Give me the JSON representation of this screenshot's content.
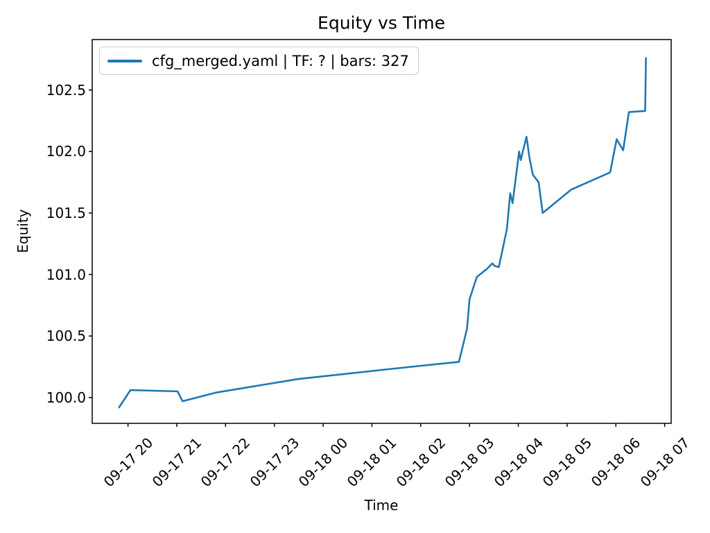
{
  "title": "Equity vs Time",
  "chart_data": {
    "type": "line",
    "title": "Equity vs Time",
    "xlabel": "Time",
    "ylabel": "Equity",
    "grid": false,
    "legend_position": "upper left",
    "background": "#ffffff",
    "spine_color": "#000000",
    "x_tick_labels": [
      "09-17 20",
      "09-17 21",
      "09-17 22",
      "09-17 23",
      "09-18 00",
      "09-18 01",
      "09-18 02",
      "09-18 03",
      "09-18 04",
      "09-18 05",
      "09-18 06",
      "09-18 07"
    ],
    "y_tick_values": [
      100.0,
      100.5,
      101.0,
      101.5,
      102.0,
      102.5
    ],
    "xlim": [
      "09-17 19:16",
      "09-18 07:08"
    ],
    "ylim": [
      99.79,
      102.91
    ],
    "series": [
      {
        "name": "cfg_merged.yaml | TF: ? | bars: 327",
        "color": "#1f77b4",
        "points": [
          [
            "09-17 19:49",
            99.92
          ],
          [
            "09-17 20:03",
            100.06
          ],
          [
            "09-17 21:01",
            100.05
          ],
          [
            "09-17 21:07",
            99.97
          ],
          [
            "09-17 21:48",
            100.04
          ],
          [
            "09-17 23:29",
            100.15
          ],
          [
            "09-18 01:20",
            100.23
          ],
          [
            "09-18 02:47",
            100.29
          ],
          [
            "09-18 02:57",
            100.56
          ],
          [
            "09-18 03:00",
            100.8
          ],
          [
            "09-18 03:09",
            100.98
          ],
          [
            "09-18 03:22",
            101.05
          ],
          [
            "09-18 03:28",
            101.09
          ],
          [
            "09-18 03:31",
            101.07
          ],
          [
            "09-18 03:36",
            101.06
          ],
          [
            "09-18 03:46",
            101.37
          ],
          [
            "09-18 03:50",
            101.66
          ],
          [
            "09-18 03:53",
            101.58
          ],
          [
            "09-18 04:01",
            102.0
          ],
          [
            "09-18 04:03",
            101.93
          ],
          [
            "09-18 04:10",
            102.12
          ],
          [
            "09-18 04:14",
            101.94
          ],
          [
            "09-18 04:18",
            101.81
          ],
          [
            "09-18 04:25",
            101.75
          ],
          [
            "09-18 04:30",
            101.5
          ],
          [
            "09-18 05:05",
            101.69
          ],
          [
            "09-18 05:53",
            101.83
          ],
          [
            "09-18 06:01",
            102.1
          ],
          [
            "09-18 06:09",
            102.01
          ],
          [
            "09-18 06:16",
            102.32
          ],
          [
            "09-18 06:36",
            102.33
          ],
          [
            "09-18 06:37",
            102.76
          ]
        ]
      }
    ]
  }
}
